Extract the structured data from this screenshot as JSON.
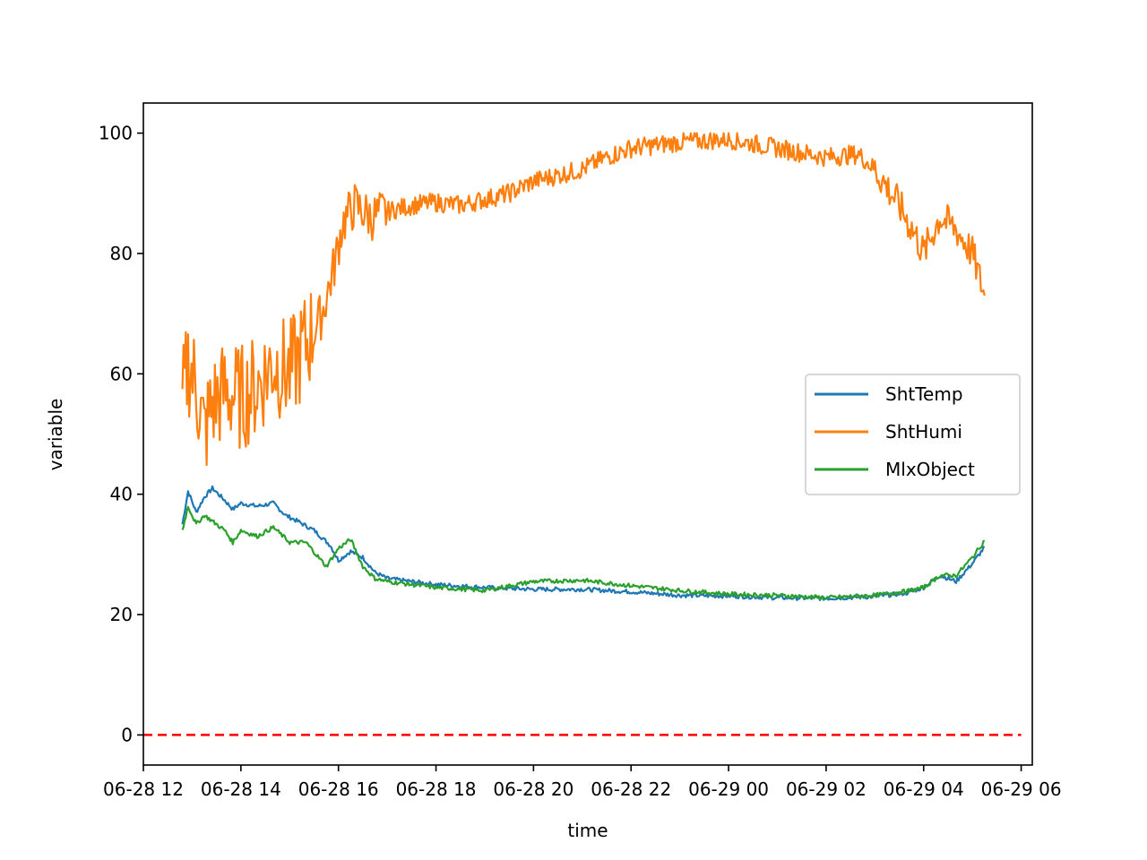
{
  "chart_data": {
    "type": "line",
    "title": "",
    "xlabel": "time",
    "ylabel": "variable",
    "xlim": [
      "2023-06-28 12:00",
      "2023-06-29 06:00"
    ],
    "ylim": [
      -5,
      105
    ],
    "x_ticks": [
      "06-28 12",
      "06-28 14",
      "06-28 16",
      "06-28 18",
      "06-28 20",
      "06-28 22",
      "06-29 00",
      "06-29 02",
      "06-29 04",
      "06-29 06"
    ],
    "y_ticks": [
      "0",
      "20",
      "40",
      "60",
      "80",
      "100"
    ],
    "grid": false,
    "legend_position": "center-right",
    "series": [
      {
        "name": "ShtTemp",
        "color": "#1f77b4",
        "x": [
          "2023-06-28 12:48",
          "2023-06-28 12:55",
          "2023-06-28 13:05",
          "2023-06-28 13:15",
          "2023-06-28 13:25",
          "2023-06-28 13:40",
          "2023-06-28 13:50",
          "2023-06-28 14:00",
          "2023-06-28 14:20",
          "2023-06-28 14:40",
          "2023-06-28 14:55",
          "2023-06-28 15:10",
          "2023-06-28 15:30",
          "2023-06-28 15:50",
          "2023-06-28 16:00",
          "2023-06-28 16:15",
          "2023-06-28 16:30",
          "2023-06-28 16:45",
          "2023-06-28 17:00",
          "2023-06-28 17:30",
          "2023-06-28 18:00",
          "2023-06-28 19:00",
          "2023-06-28 20:00",
          "2023-06-28 21:00",
          "2023-06-28 22:00",
          "2023-06-28 23:00",
          "2023-06-29 00:00",
          "2023-06-29 01:00",
          "2023-06-29 02:00",
          "2023-06-29 03:00",
          "2023-06-29 03:40",
          "2023-06-29 04:00",
          "2023-06-29 04:20",
          "2023-06-29 04:40",
          "2023-06-29 05:00",
          "2023-06-29 05:15"
        ],
        "values": [
          35,
          40.5,
          37,
          39.5,
          41,
          39,
          37.5,
          38.5,
          38,
          38.5,
          36.5,
          35.5,
          34,
          31.5,
          29,
          30.5,
          29.5,
          27,
          26,
          25.5,
          25,
          24.5,
          24.2,
          24.2,
          23.8,
          23.2,
          23.1,
          22.8,
          22.7,
          23,
          23.6,
          24.5,
          26.5,
          25.5,
          28.5,
          31.2
        ]
      },
      {
        "name": "ShtHumi",
        "color": "#ff7f0e",
        "x": [
          "2023-06-28 12:48",
          "2023-06-28 12:55",
          "2023-06-28 13:05",
          "2023-06-28 13:15",
          "2023-06-28 13:25",
          "2023-06-28 13:40",
          "2023-06-28 14:00",
          "2023-06-28 14:20",
          "2023-06-28 14:40",
          "2023-06-28 15:00",
          "2023-06-28 15:20",
          "2023-06-28 15:40",
          "2023-06-28 15:55",
          "2023-06-28 16:05",
          "2023-06-28 16:20",
          "2023-06-28 16:40",
          "2023-06-28 17:00",
          "2023-06-28 17:30",
          "2023-06-28 18:00",
          "2023-06-28 18:30",
          "2023-06-28 19:00",
          "2023-06-28 19:30",
          "2023-06-28 20:00",
          "2023-06-28 20:30",
          "2023-06-28 21:00",
          "2023-06-28 21:30",
          "2023-06-28 22:00",
          "2023-06-28 23:00",
          "2023-06-29 00:00",
          "2023-06-29 01:00",
          "2023-06-29 02:00",
          "2023-06-29 02:40",
          "2023-06-29 03:00",
          "2023-06-29 03:30",
          "2023-06-29 03:50",
          "2023-06-29 04:00",
          "2023-06-29 04:20",
          "2023-06-29 04:40",
          "2023-06-29 05:00",
          "2023-06-29 05:15"
        ],
        "values": [
          55,
          62,
          58,
          50,
          55,
          57,
          56,
          58,
          62,
          60,
          65,
          70,
          78,
          85,
          88,
          86,
          87,
          88,
          88.5,
          88,
          89,
          90,
          92,
          93,
          94,
          96,
          97.5,
          98.5,
          99,
          97.5,
          96,
          96.5,
          94,
          88,
          83,
          80,
          86,
          84,
          80,
          73
        ]
      },
      {
        "name": "MlxObject",
        "color": "#2ca02c",
        "x": [
          "2023-06-28 12:48",
          "2023-06-28 12:55",
          "2023-06-28 13:05",
          "2023-06-28 13:15",
          "2023-06-28 13:25",
          "2023-06-28 13:40",
          "2023-06-28 13:50",
          "2023-06-28 14:00",
          "2023-06-28 14:20",
          "2023-06-28 14:40",
          "2023-06-28 15:00",
          "2023-06-28 15:20",
          "2023-06-28 15:45",
          "2023-06-28 16:00",
          "2023-06-28 16:15",
          "2023-06-28 16:30",
          "2023-06-28 16:45",
          "2023-06-28 17:00",
          "2023-06-28 17:30",
          "2023-06-28 18:00",
          "2023-06-28 19:00",
          "2023-06-28 20:00",
          "2023-06-28 21:00",
          "2023-06-28 22:00",
          "2023-06-28 23:00",
          "2023-06-29 00:00",
          "2023-06-29 01:00",
          "2023-06-29 02:00",
          "2023-06-29 03:00",
          "2023-06-29 03:40",
          "2023-06-29 04:00",
          "2023-06-29 04:20",
          "2023-06-29 04:40",
          "2023-06-29 05:00",
          "2023-06-29 05:15"
        ],
        "values": [
          34,
          38,
          35,
          36.5,
          35.5,
          34,
          32,
          34,
          33,
          34.5,
          32,
          32,
          28,
          31,
          32.5,
          28,
          26,
          25.5,
          25,
          24.5,
          24,
          25.5,
          25.7,
          24.8,
          24,
          23.4,
          23.2,
          22.8,
          23.2,
          23.9,
          24.5,
          26.5,
          26.5,
          29.5,
          32.3
        ]
      },
      {
        "name": "",
        "color": "#ff0000",
        "style": "dashed",
        "x": [
          "2023-06-28 12:00",
          "2023-06-29 06:00"
        ],
        "values": [
          0,
          0
        ]
      }
    ]
  }
}
